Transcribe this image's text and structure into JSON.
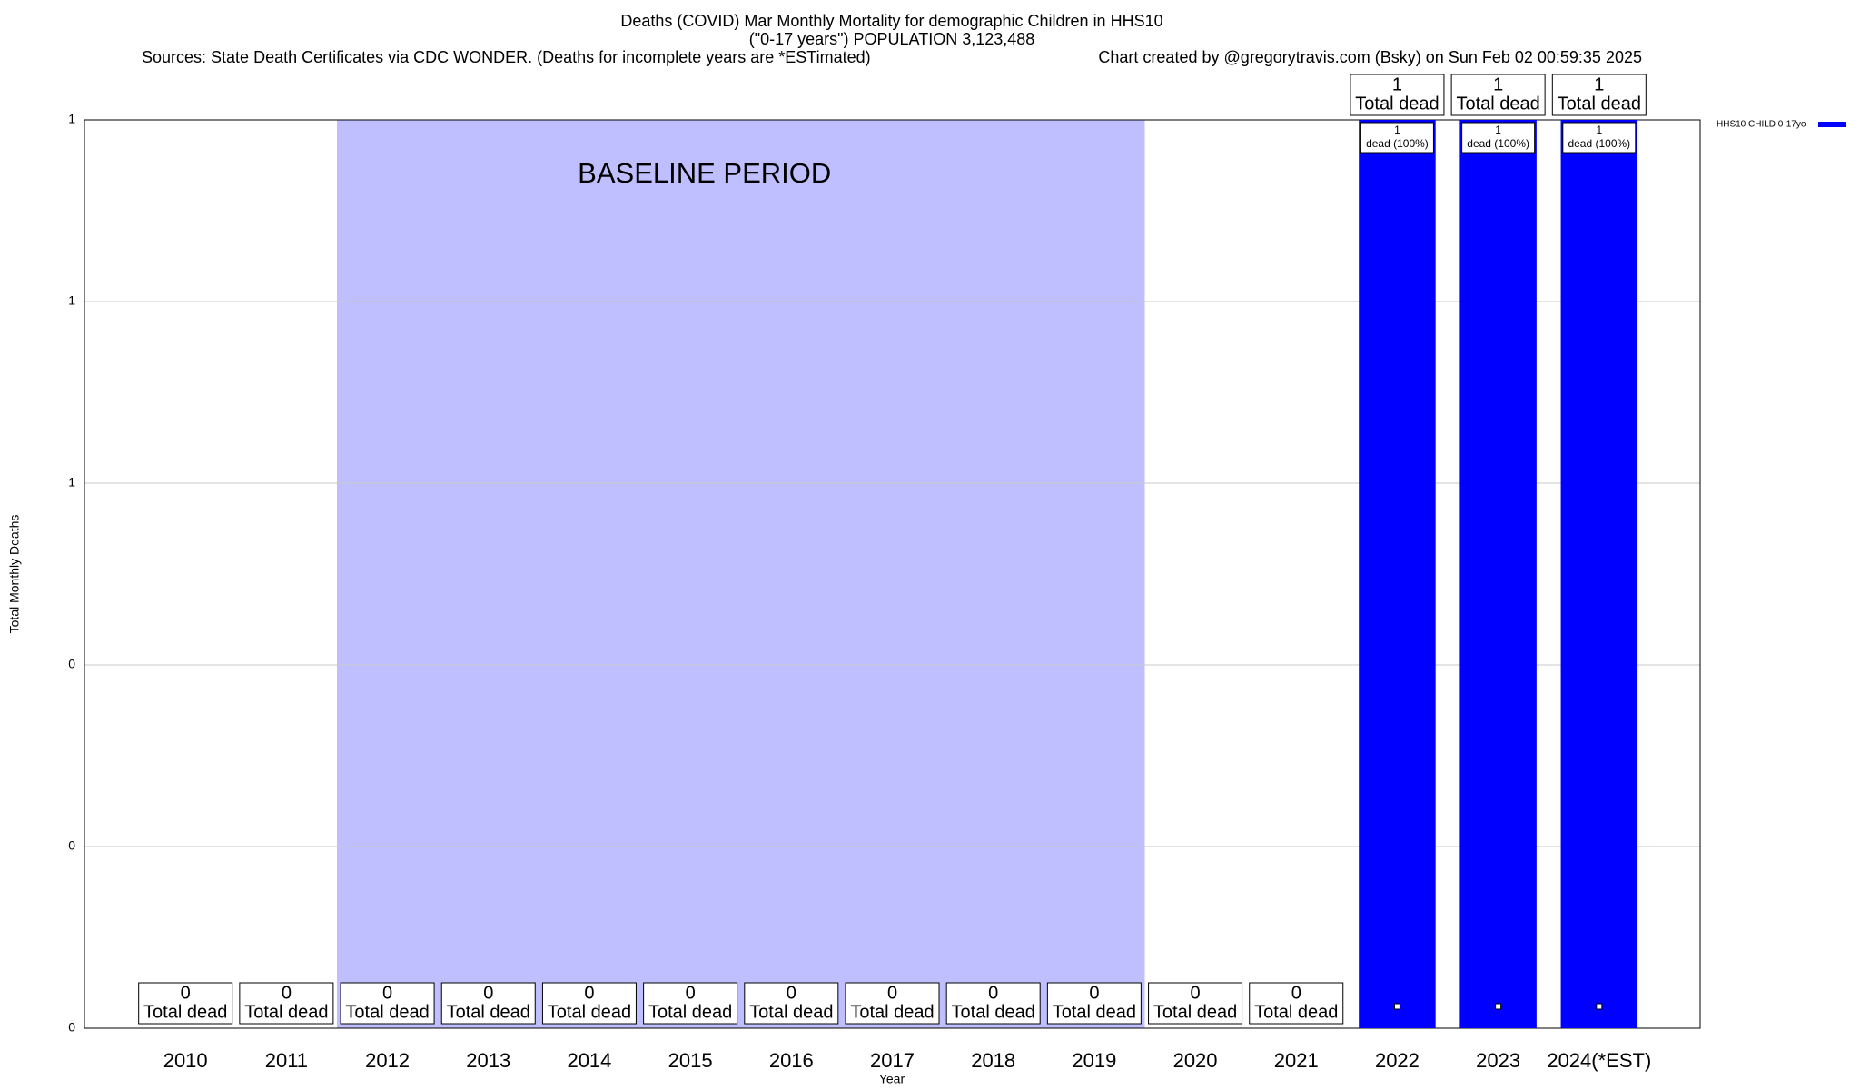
{
  "chart_data": {
    "type": "bar",
    "title": "Deaths (COVID) Mar Monthly Mortality for demographic Children in HHS10",
    "subtitle": "(\"0-17 years\") POPULATION 3,123,488",
    "source": "Sources: State Death Certificates via CDC WONDER. (Deaths for incomplete years are *ESTimated)",
    "credit": "Chart created by @gregorytravis.com (Bsky) on Sun Feb 02 00:59:35 2025",
    "x_label": "Year",
    "y_label": "Total Monthly Deaths",
    "categories": [
      "2010",
      "2011",
      "2012",
      "2013",
      "2014",
      "2015",
      "2016",
      "2017",
      "2018",
      "2019",
      "2020",
      "2021",
      "2022",
      "2023",
      "2024(*EST)"
    ],
    "series": [
      {
        "name": "HHS10 CHILD 0-17yo",
        "color": "#0000ff",
        "values": [
          0,
          0,
          0,
          0,
          0,
          0,
          0,
          0,
          0,
          0,
          0,
          0,
          1,
          1,
          1
        ]
      }
    ],
    "total_label": "Total dead",
    "share_labels": [
      null,
      null,
      null,
      null,
      null,
      null,
      null,
      null,
      null,
      null,
      null,
      null,
      "dead (100%)",
      "dead (100%)",
      "dead (100%)"
    ],
    "baseline": {
      "label": "BASELINE PERIOD",
      "start": "2012",
      "end": "2019",
      "color": "#bfbfff"
    },
    "ylim": [
      0,
      1
    ],
    "yticks": [
      0,
      {
        "value": 0.2,
        "label": "0"
      },
      {
        "value": 0.4,
        "label": "0"
      },
      {
        "value": 0.6,
        "label": "1"
      },
      {
        "value": 0.8,
        "label": "1"
      },
      {
        "value": 1,
        "label": "1"
      }
    ],
    "grid": true,
    "legend": "right"
  }
}
